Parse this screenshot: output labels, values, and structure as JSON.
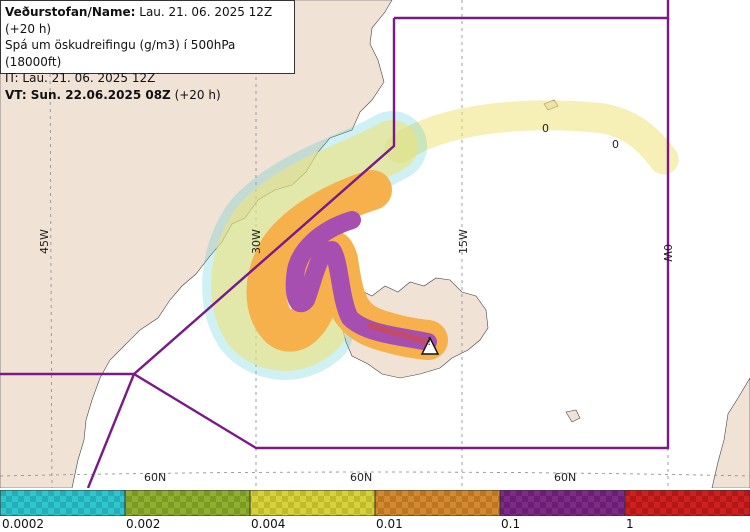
{
  "header": {
    "line1_bold": "Veðurstofan/Name:",
    "line1_rest": " Lau. 21. 06. 2025 12Z (+20 h)",
    "line2": "Spá um öskudreifingu (g/m3) í 500hPa (18000ft)",
    "line3": "IT: Lau. 21. 06. 2025 12Z",
    "line4_bold": "VT: Sun. 22.06.2025 08Z",
    "line4_rest": " (+20 h)"
  },
  "map": {
    "longitude_labels": [
      "45W",
      "30W",
      "15W",
      "0W"
    ],
    "latitude_labels": [
      "60N",
      "60N",
      "60N"
    ],
    "numeral_labels": [
      "0",
      "0"
    ],
    "colors": {
      "land": "#f1e2d6",
      "sea": "#ffffff",
      "boundary": "#7a1a86",
      "ash_high": "#a64fb0",
      "ash_mid": "#f6b04c",
      "ash_low": "#eee27a"
    },
    "volcano_icon": "triangle-warning-icon"
  },
  "legend": {
    "ticks": [
      "0.0002",
      "0.002",
      "0.004",
      "0.01",
      "0.1",
      "1"
    ],
    "colors": [
      "#2ec6cf",
      "#8fb02f",
      "#d7d13a",
      "#d38a2f",
      "#7e2a87",
      "#cf2020"
    ]
  }
}
